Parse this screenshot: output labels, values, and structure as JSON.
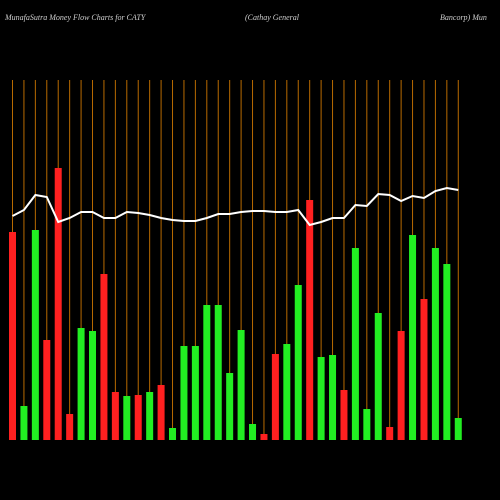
{
  "chart_data": {
    "type": "bar",
    "title": "MunafaSutra  Money Flow  Charts for CATY",
    "subtitle": "(Cathay General",
    "subtitle_cont": "Bancorp) Mun",
    "values": [
      208,
      34,
      210,
      100,
      272,
      26,
      112,
      109,
      166,
      48,
      44,
      45,
      48,
      55,
      12,
      94,
      94,
      135,
      135,
      67,
      110,
      16,
      6,
      86,
      96,
      155,
      240,
      83,
      85,
      50,
      192,
      31,
      127,
      13,
      109,
      205,
      141,
      192,
      176,
      22
    ],
    "colors": [
      "#ff2020",
      "#22ee22",
      "#22ee22",
      "#ff2020",
      "#ff2020",
      "#ff2020",
      "#22ee22",
      "#22ee22",
      "#ff2020",
      "#ff2020",
      "#22ee22",
      "#ff2020",
      "#22ee22",
      "#ff2020",
      "#22ee22",
      "#22ee22",
      "#22ee22",
      "#22ee22",
      "#22ee22",
      "#22ee22",
      "#22ee22",
      "#22ee22",
      "#ff2020",
      "#ff2020",
      "#22ee22",
      "#22ee22",
      "#ff2020",
      "#22ee22",
      "#22ee22",
      "#ff2020",
      "#22ee22",
      "#22ee22",
      "#22ee22",
      "#ff2020",
      "#ff2020",
      "#22ee22",
      "#ff2020",
      "#22ee22",
      "#22ee22",
      "#22ee22"
    ],
    "line": {
      "color": "#ffffff",
      "values": [
        224,
        230,
        245,
        243,
        218,
        222,
        228,
        228,
        222,
        222,
        228,
        227,
        225,
        222,
        220,
        219,
        219,
        222,
        226,
        226,
        228,
        229,
        229,
        228,
        228,
        230,
        215,
        218,
        222,
        222,
        235,
        234,
        246,
        245,
        239,
        244,
        242,
        249,
        252,
        250
      ]
    },
    "ylim": [
      0,
      300
    ],
    "grid": true,
    "grid_color": "#b86a00"
  }
}
